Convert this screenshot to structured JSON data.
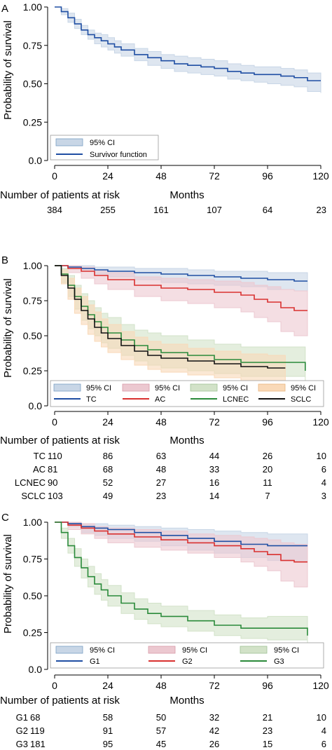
{
  "chart_data": [
    {
      "panel": "A",
      "type": "line",
      "ylabel": "Probability of survival",
      "xlabel": "Months",
      "xlim": [
        0,
        120
      ],
      "ylim": [
        0,
        1
      ],
      "xticks": [
        "0",
        "24",
        "48",
        "72",
        "96",
        "120"
      ],
      "yticks": [
        "0.0",
        "0.25",
        "0.50",
        "0.75",
        "1.00"
      ],
      "legend": {
        "placement": "bottom-left",
        "columns": 1,
        "entries": [
          {
            "label": "95% CI",
            "kind": "ci",
            "color": "#c8d6e6"
          },
          {
            "label": "Survivor function",
            "kind": "line",
            "color": "#1f4ea3"
          }
        ]
      },
      "series": [
        {
          "color": "#1f4ea3",
          "ci_color": "#c8d6e6",
          "x": [
            0,
            3,
            6,
            9,
            12,
            15,
            18,
            21,
            24,
            27,
            30,
            36,
            42,
            48,
            54,
            60,
            66,
            72,
            78,
            84,
            90,
            96,
            102,
            108,
            114,
            120
          ],
          "y": [
            1.0,
            0.97,
            0.93,
            0.89,
            0.85,
            0.82,
            0.8,
            0.78,
            0.76,
            0.74,
            0.72,
            0.69,
            0.67,
            0.65,
            0.63,
            0.62,
            0.61,
            0.6,
            0.58,
            0.57,
            0.56,
            0.56,
            0.55,
            0.54,
            0.52,
            0.52
          ],
          "lower": [
            1.0,
            0.95,
            0.9,
            0.86,
            0.82,
            0.79,
            0.76,
            0.74,
            0.72,
            0.7,
            0.68,
            0.65,
            0.62,
            0.6,
            0.58,
            0.57,
            0.56,
            0.55,
            0.53,
            0.52,
            0.51,
            0.5,
            0.49,
            0.48,
            0.45,
            0.44
          ],
          "upper": [
            1.0,
            0.99,
            0.96,
            0.92,
            0.88,
            0.85,
            0.83,
            0.82,
            0.8,
            0.78,
            0.76,
            0.73,
            0.71,
            0.69,
            0.68,
            0.67,
            0.66,
            0.65,
            0.63,
            0.62,
            0.61,
            0.61,
            0.6,
            0.59,
            0.57,
            0.57
          ]
        }
      ],
      "risk_table": {
        "header": "Number of patients at risk",
        "rows": [
          {
            "label": "",
            "values": [
              "384",
              "255",
              "161",
              "107",
              "64",
              "23"
            ]
          }
        ]
      }
    },
    {
      "panel": "B",
      "type": "line",
      "ylabel": "Probability of survival",
      "xlabel": "Months",
      "xlim": [
        0,
        120
      ],
      "ylim": [
        0,
        1
      ],
      "xticks": [
        "0",
        "24",
        "48",
        "72",
        "96",
        "120"
      ],
      "yticks": [
        "0.0",
        "0.25",
        "0.50",
        "0.75",
        "1.00"
      ],
      "legend": {
        "placement": "bottom",
        "columns": 4,
        "entries": [
          {
            "label": "95% CI",
            "kind": "ci",
            "color": "#c8d6e6"
          },
          {
            "label": "95% CI",
            "kind": "ci",
            "color": "#ecc8d0"
          },
          {
            "label": "95% CI",
            "kind": "ci",
            "color": "#d2e2c8"
          },
          {
            "label": "95% CI",
            "kind": "ci",
            "color": "#f9d9b8"
          },
          {
            "label": "TC",
            "kind": "line",
            "color": "#1f4ea3"
          },
          {
            "label": "AC",
            "kind": "line",
            "color": "#d9302f"
          },
          {
            "label": "LCNEC",
            "kind": "line",
            "color": "#2a8a3a"
          },
          {
            "label": "SCLC",
            "kind": "line",
            "color": "#111111"
          }
        ]
      },
      "series": [
        {
          "name": "TC",
          "color": "#1f4ea3",
          "ci_color": "#c8d6e6",
          "x": [
            0,
            6,
            12,
            18,
            24,
            36,
            48,
            60,
            72,
            84,
            96,
            108,
            114
          ],
          "y": [
            1.0,
            0.99,
            0.98,
            0.97,
            0.96,
            0.95,
            0.94,
            0.93,
            0.92,
            0.91,
            0.9,
            0.89,
            0.89
          ],
          "lower": [
            1.0,
            0.98,
            0.96,
            0.94,
            0.92,
            0.9,
            0.88,
            0.87,
            0.86,
            0.85,
            0.83,
            0.82,
            0.8
          ],
          "upper": [
            1.0,
            1.0,
            1.0,
            0.99,
            0.99,
            0.98,
            0.98,
            0.97,
            0.96,
            0.96,
            0.95,
            0.95,
            0.95
          ]
        },
        {
          "name": "AC",
          "color": "#d9302f",
          "ci_color": "#ecc8d0",
          "x": [
            0,
            6,
            12,
            18,
            24,
            36,
            48,
            60,
            72,
            84,
            90,
            96,
            102,
            108,
            114
          ],
          "y": [
            1.0,
            0.98,
            0.96,
            0.93,
            0.9,
            0.86,
            0.84,
            0.83,
            0.81,
            0.79,
            0.76,
            0.74,
            0.7,
            0.68,
            0.68
          ],
          "lower": [
            1.0,
            0.95,
            0.91,
            0.87,
            0.83,
            0.78,
            0.75,
            0.73,
            0.7,
            0.67,
            0.63,
            0.6,
            0.53,
            0.5,
            0.5
          ],
          "upper": [
            1.0,
            1.0,
            0.99,
            0.97,
            0.95,
            0.92,
            0.91,
            0.9,
            0.89,
            0.88,
            0.86,
            0.85,
            0.83,
            0.82,
            0.82
          ]
        },
        {
          "name": "LCNEC",
          "color": "#2a8a3a",
          "ci_color": "#d2e2c8",
          "x": [
            0,
            3,
            6,
            9,
            12,
            15,
            18,
            21,
            24,
            30,
            36,
            42,
            48,
            60,
            72,
            84,
            96,
            108,
            113
          ],
          "y": [
            1.0,
            0.94,
            0.86,
            0.78,
            0.71,
            0.65,
            0.6,
            0.56,
            0.52,
            0.47,
            0.43,
            0.4,
            0.38,
            0.36,
            0.33,
            0.31,
            0.31,
            0.31,
            0.25
          ],
          "lower": [
            1.0,
            0.88,
            0.78,
            0.69,
            0.61,
            0.55,
            0.5,
            0.45,
            0.41,
            0.36,
            0.32,
            0.29,
            0.27,
            0.25,
            0.23,
            0.21,
            0.21,
            0.21,
            0.17
          ],
          "upper": [
            1.0,
            0.98,
            0.93,
            0.86,
            0.8,
            0.75,
            0.7,
            0.66,
            0.63,
            0.58,
            0.54,
            0.52,
            0.5,
            0.47,
            0.44,
            0.42,
            0.42,
            0.42,
            0.35
          ]
        },
        {
          "name": "SCLC",
          "color": "#111111",
          "ci_color": "#f9d9b8",
          "x": [
            0,
            3,
            6,
            9,
            12,
            15,
            18,
            21,
            24,
            30,
            36,
            42,
            48,
            60,
            72,
            84,
            96,
            104
          ],
          "y": [
            1.0,
            0.93,
            0.84,
            0.76,
            0.68,
            0.62,
            0.56,
            0.52,
            0.48,
            0.43,
            0.39,
            0.36,
            0.34,
            0.32,
            0.3,
            0.28,
            0.27,
            0.27
          ],
          "lower": [
            1.0,
            0.87,
            0.76,
            0.66,
            0.58,
            0.51,
            0.46,
            0.42,
            0.38,
            0.33,
            0.29,
            0.26,
            0.24,
            0.22,
            0.2,
            0.18,
            0.17,
            0.17
          ],
          "upper": [
            1.0,
            0.97,
            0.91,
            0.84,
            0.78,
            0.72,
            0.67,
            0.62,
            0.58,
            0.53,
            0.49,
            0.46,
            0.44,
            0.41,
            0.39,
            0.37,
            0.36,
            0.36
          ]
        }
      ],
      "risk_table": {
        "header": "Number of patients at risk",
        "rows": [
          {
            "label": "TC",
            "values": [
              "110",
              "86",
              "63",
              "44",
              "26",
              "10"
            ]
          },
          {
            "label": "AC",
            "values": [
              "81",
              "68",
              "48",
              "33",
              "20",
              "6"
            ]
          },
          {
            "label": "LCNEC",
            "values": [
              "90",
              "52",
              "27",
              "16",
              "11",
              "4"
            ]
          },
          {
            "label": "SCLC",
            "values": [
              "103",
              "49",
              "23",
              "14",
              "7",
              "3"
            ]
          }
        ]
      }
    },
    {
      "panel": "C",
      "type": "line",
      "ylabel": "Probability of survival",
      "xlabel": "Months",
      "xlim": [
        0,
        120
      ],
      "ylim": [
        0,
        1
      ],
      "xticks": [
        "0",
        "24",
        "48",
        "72",
        "96",
        "120"
      ],
      "yticks": [
        "0.0",
        "0.25",
        "0.50",
        "0.75",
        "1.00"
      ],
      "legend": {
        "placement": "bottom",
        "columns": 3,
        "entries": [
          {
            "label": "95% CI",
            "kind": "ci",
            "color": "#c8d6e6"
          },
          {
            "label": "95% CI",
            "kind": "ci",
            "color": "#ecc8d0"
          },
          {
            "label": "95% CI",
            "kind": "ci",
            "color": "#d2e2c8"
          },
          {
            "label": "G1",
            "kind": "line",
            "color": "#1f4ea3"
          },
          {
            "label": "G2",
            "kind": "line",
            "color": "#d9302f"
          },
          {
            "label": "G3",
            "kind": "line",
            "color": "#2a8a3a"
          }
        ]
      },
      "series": [
        {
          "name": "G1",
          "color": "#1f4ea3",
          "ci_color": "#c8d6e6",
          "x": [
            0,
            6,
            12,
            18,
            24,
            36,
            48,
            60,
            72,
            84,
            96,
            108,
            114
          ],
          "y": [
            1.0,
            0.99,
            0.97,
            0.96,
            0.95,
            0.93,
            0.91,
            0.89,
            0.87,
            0.85,
            0.84,
            0.84,
            0.84
          ],
          "lower": [
            1.0,
            0.97,
            0.93,
            0.91,
            0.89,
            0.87,
            0.84,
            0.81,
            0.79,
            0.76,
            0.74,
            0.73,
            0.73
          ],
          "upper": [
            1.0,
            1.0,
            0.99,
            0.99,
            0.98,
            0.97,
            0.96,
            0.95,
            0.94,
            0.93,
            0.92,
            0.92,
            0.92
          ]
        },
        {
          "name": "G2",
          "color": "#d9302f",
          "ci_color": "#ecc8d0",
          "x": [
            0,
            6,
            12,
            18,
            24,
            36,
            48,
            60,
            72,
            84,
            90,
            96,
            102,
            108,
            114
          ],
          "y": [
            1.0,
            0.98,
            0.96,
            0.94,
            0.92,
            0.9,
            0.88,
            0.86,
            0.84,
            0.82,
            0.8,
            0.78,
            0.74,
            0.73,
            0.73
          ],
          "lower": [
            1.0,
            0.95,
            0.92,
            0.89,
            0.86,
            0.83,
            0.81,
            0.79,
            0.76,
            0.73,
            0.7,
            0.67,
            0.6,
            0.56,
            0.56
          ],
          "upper": [
            1.0,
            1.0,
            0.99,
            0.97,
            0.96,
            0.95,
            0.94,
            0.92,
            0.91,
            0.9,
            0.89,
            0.88,
            0.86,
            0.85,
            0.85
          ]
        },
        {
          "name": "G3",
          "color": "#2a8a3a",
          "ci_color": "#d2e2c8",
          "x": [
            0,
            3,
            6,
            9,
            12,
            15,
            18,
            21,
            24,
            30,
            36,
            42,
            48,
            60,
            72,
            84,
            96,
            108,
            114
          ],
          "y": [
            1.0,
            0.93,
            0.84,
            0.76,
            0.69,
            0.63,
            0.58,
            0.54,
            0.5,
            0.45,
            0.41,
            0.38,
            0.36,
            0.33,
            0.3,
            0.28,
            0.28,
            0.28,
            0.23
          ],
          "lower": [
            1.0,
            0.89,
            0.79,
            0.7,
            0.62,
            0.56,
            0.51,
            0.47,
            0.43,
            0.38,
            0.34,
            0.31,
            0.29,
            0.26,
            0.23,
            0.21,
            0.2,
            0.2,
            0.15
          ],
          "upper": [
            1.0,
            0.96,
            0.89,
            0.82,
            0.75,
            0.7,
            0.65,
            0.61,
            0.57,
            0.52,
            0.48,
            0.45,
            0.43,
            0.4,
            0.37,
            0.35,
            0.36,
            0.36,
            0.32
          ]
        }
      ],
      "risk_table": {
        "header": "Number of patients at risk",
        "rows": [
          {
            "label": "G1",
            "values": [
              "68",
              "58",
              "50",
              "32",
              "21",
              "10"
            ]
          },
          {
            "label": "G2",
            "values": [
              "119",
              "91",
              "57",
              "42",
              "23",
              "4"
            ]
          },
          {
            "label": "G3",
            "values": [
              "181",
              "95",
              "45",
              "26",
              "15",
              "6"
            ]
          }
        ]
      }
    }
  ]
}
